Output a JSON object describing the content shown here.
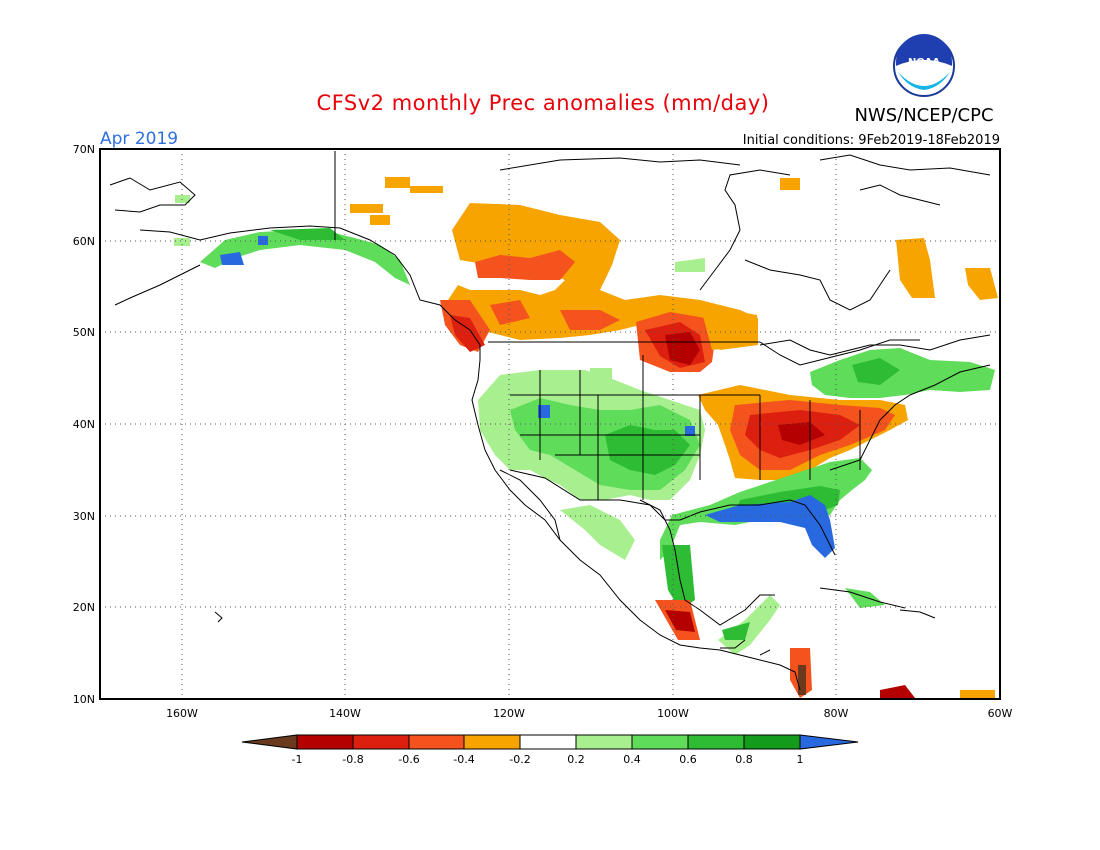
{
  "title": "CFSv2 monthly Prec anomalies (mm/day)",
  "valid_month": "Apr 2019",
  "agency": "NWS/NCEP/CPC",
  "logo_text": "NOAA",
  "initial_conditions": "Initial conditions: 9Feb2019-18Feb2019",
  "colors": {
    "title": "#e8000b",
    "month": "#2f6fe0",
    "frame": "#000000"
  },
  "map": {
    "lon_range": [
      -170,
      -60
    ],
    "lat_range": [
      10,
      70
    ],
    "grid": "dotted",
    "lat_labels": [
      "70N",
      "60N",
      "50N",
      "40N",
      "30N",
      "20N",
      "10N"
    ],
    "lon_labels": [
      "160W",
      "140W",
      "120W",
      "100W",
      "80W",
      "60W"
    ]
  },
  "colorbar": {
    "labels": [
      "-1",
      "-0.8",
      "-0.6",
      "-0.4",
      "-0.2",
      "0.2",
      "0.4",
      "0.6",
      "0.8",
      "1"
    ],
    "colors": [
      "#6b3a1e",
      "#b40000",
      "#dd1f0f",
      "#f4531e",
      "#f7a300",
      "#ffffff",
      "#a8f08f",
      "#5fdc5a",
      "#2ebc34",
      "#139c1c",
      "#2869e0"
    ]
  }
}
